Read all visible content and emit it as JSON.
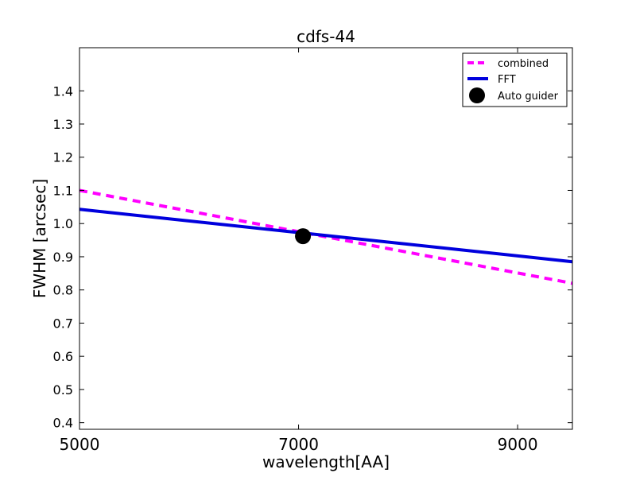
{
  "chart_data": {
    "type": "line",
    "title": "cdfs-44",
    "xlabel": "wavelength[AA]",
    "ylabel": "FWHM [arcsec]",
    "xlim": [
      5000,
      9500
    ],
    "ylim": [
      0.38,
      1.53
    ],
    "xticks": [
      5000,
      7000,
      9000
    ],
    "yticks": [
      0.4,
      0.5,
      0.6,
      0.7,
      0.8,
      0.9,
      1.0,
      1.1,
      1.2,
      1.3,
      1.4
    ],
    "grid": false,
    "legend_position": "top-right",
    "series": [
      {
        "name": "combined",
        "style": "dashed",
        "color": "#ff00ff",
        "x": [
          5000,
          9500
        ],
        "y": [
          1.1,
          0.82
        ]
      },
      {
        "name": "FFT",
        "style": "solid",
        "color": "#0000dd",
        "x": [
          5000,
          9500
        ],
        "y": [
          1.043,
          0.885
        ]
      }
    ],
    "points": [
      {
        "name": "Auto guider",
        "color": "#000000",
        "x": 7040,
        "y": 0.962
      }
    ]
  }
}
